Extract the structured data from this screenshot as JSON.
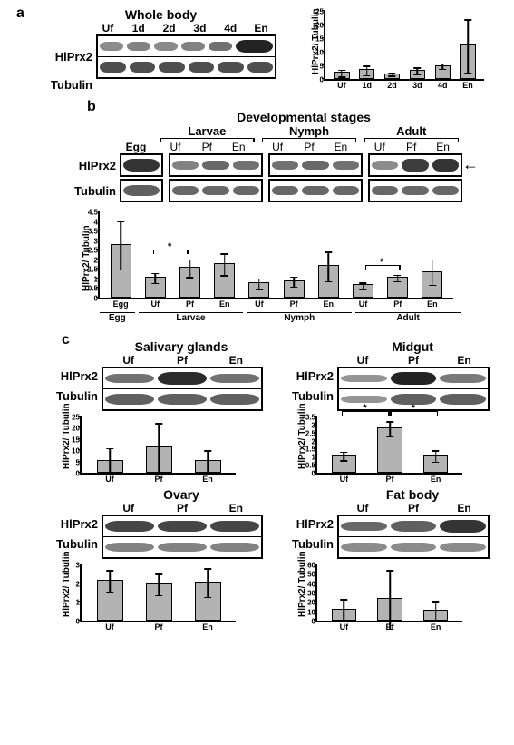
{
  "panelA": {
    "label": "a",
    "title": "Whole body",
    "lanes": [
      "Uf",
      "1d",
      "2d",
      "3d",
      "4d",
      "En"
    ],
    "rows": [
      "HlPrx2",
      "Tubulin"
    ],
    "bands": {
      "HlPrx2": [
        0.35,
        0.4,
        0.35,
        0.4,
        0.5,
        0.95
      ],
      "Tubulin": [
        0.7,
        0.7,
        0.7,
        0.7,
        0.7,
        0.7
      ]
    },
    "chart": {
      "ylabel": "HlPrx2/ Tubulin",
      "ylim": 25,
      "yticks": [
        0,
        5,
        10,
        15,
        20,
        25
      ],
      "bars": [
        {
          "x": "Uf",
          "v": 2,
          "e": 1.5
        },
        {
          "x": "1d",
          "v": 3,
          "e": 2
        },
        {
          "x": "2d",
          "v": 1.5,
          "e": 0.7
        },
        {
          "x": "3d",
          "v": 2.8,
          "e": 1.5
        },
        {
          "x": "4d",
          "v": 4.5,
          "e": 1.2
        },
        {
          "x": "En",
          "v": 12,
          "e": 10
        }
      ]
    }
  },
  "panelB": {
    "label": "b",
    "title": "Developmental stages",
    "egg": "Egg",
    "stages": [
      "Larvae",
      "Nymph",
      "Adult"
    ],
    "sublanes": [
      "Uf",
      "Pf",
      "En"
    ],
    "rows": [
      "HlPrx2",
      "Tubulin"
    ],
    "bands": {
      "Egg": {
        "HlPrx2": 0.85,
        "Tubulin": 0.6
      },
      "Larvae": {
        "HlPrx2": [
          0.4,
          0.55,
          0.5
        ],
        "Tubulin": [
          0.55,
          0.55,
          0.55
        ]
      },
      "Nymph": {
        "HlPrx2": [
          0.5,
          0.55,
          0.5
        ],
        "Tubulin": [
          0.55,
          0.55,
          0.55
        ]
      },
      "Adult": {
        "HlPrx2": [
          0.35,
          0.8,
          0.85
        ],
        "Tubulin": [
          0.55,
          0.55,
          0.55
        ]
      }
    },
    "chart": {
      "ylabel": "HlPrx2/ Tubulin",
      "ylim": 4.5,
      "yticks": [
        0,
        0.5,
        1,
        1.5,
        2,
        2.5,
        3,
        3.5,
        4,
        4.5
      ],
      "bars": [
        {
          "x": "Egg",
          "v": 2.7,
          "e": 1.3,
          "grp": "Egg"
        },
        {
          "x": "Uf",
          "v": 1.0,
          "e": 0.3,
          "grp": "Larvae"
        },
        {
          "x": "Pf",
          "v": 1.5,
          "e": 0.5,
          "grp": "Larvae"
        },
        {
          "x": "En",
          "v": 1.7,
          "e": 0.6,
          "grp": "Larvae"
        },
        {
          "x": "Uf",
          "v": 0.7,
          "e": 0.3,
          "grp": "Nymph"
        },
        {
          "x": "Pf",
          "v": 0.8,
          "e": 0.3,
          "grp": "Nymph"
        },
        {
          "x": "En",
          "v": 1.6,
          "e": 0.8,
          "grp": "Nymph"
        },
        {
          "x": "Uf",
          "v": 0.6,
          "e": 0.2,
          "grp": "Adult"
        },
        {
          "x": "Pf",
          "v": 1.0,
          "e": 0.2,
          "grp": "Adult"
        },
        {
          "x": "En",
          "v": 1.3,
          "e": 0.7,
          "grp": "Adult"
        }
      ],
      "sig": [
        {
          "from": 1,
          "to": 2,
          "star": "*"
        },
        {
          "from": 7,
          "to": 8,
          "star": "*"
        }
      ]
    }
  },
  "panelC": {
    "label": "c",
    "tissues": {
      "sg": {
        "title": "Salivary glands",
        "lanes": [
          "Uf",
          "Pf",
          "En"
        ],
        "rows": [
          "HlPrx2",
          "Tubulin"
        ],
        "bands": {
          "HlPrx2": [
            0.5,
            0.9,
            0.5
          ],
          "Tubulin": [
            0.6,
            0.6,
            0.6
          ]
        },
        "chart": {
          "ylabel": "HlPrx2/ Tubulin",
          "ylim": 25,
          "yticks": [
            0,
            5,
            10,
            15,
            20,
            25
          ],
          "bars": [
            {
              "x": "Uf",
              "v": 5,
              "e": 6
            },
            {
              "x": "Pf",
              "v": 11,
              "e": 11
            },
            {
              "x": "En",
              "v": 5,
              "e": 5
            }
          ]
        }
      },
      "mg": {
        "title": "Midgut",
        "lanes": [
          "Uf",
          "Pf",
          "En"
        ],
        "rows": [
          "HlPrx2",
          "Tubulin"
        ],
        "bands": {
          "HlPrx2": [
            0.3,
            0.95,
            0.45
          ],
          "Tubulin": [
            0.3,
            0.6,
            0.6
          ]
        },
        "chart": {
          "ylabel": "HlPrx2/ Tubulin",
          "ylim": 3.5,
          "yticks": [
            0,
            0.5,
            1,
            1.5,
            2,
            2.5,
            3,
            3.5
          ],
          "bars": [
            {
              "x": "Uf",
              "v": 1.0,
              "e": 0.3
            },
            {
              "x": "Pf",
              "v": 2.7,
              "e": 0.5
            },
            {
              "x": "En",
              "v": 1.0,
              "e": 0.4
            }
          ],
          "sig": [
            {
              "from": 0,
              "to": 1,
              "star": "*"
            },
            {
              "from": 1,
              "to": 2,
              "star": "*"
            }
          ]
        }
      },
      "ov": {
        "title": "Ovary",
        "lanes": [
          "Uf",
          "Pf",
          "En"
        ],
        "rows": [
          "HlPrx2",
          "Tubulin"
        ],
        "bands": {
          "HlPrx2": [
            0.75,
            0.75,
            0.75
          ],
          "Tubulin": [
            0.4,
            0.4,
            0.4
          ]
        },
        "chart": {
          "ylabel": "HlPrx2/ Tubulin",
          "ylim": 3,
          "yticks": [
            0,
            1,
            2,
            3
          ],
          "bars": [
            {
              "x": "Uf",
              "v": 2.1,
              "e": 0.6
            },
            {
              "x": "Pf",
              "v": 1.9,
              "e": 0.6
            },
            {
              "x": "En",
              "v": 2.0,
              "e": 0.8
            }
          ]
        }
      },
      "fb": {
        "title": "Fat body",
        "lanes": [
          "Uf",
          "Pf",
          "En"
        ],
        "rows": [
          "HlPrx2",
          "Tubulin"
        ],
        "bands": {
          "HlPrx2": [
            0.55,
            0.6,
            0.85
          ],
          "Tubulin": [
            0.35,
            0.35,
            0.35
          ]
        },
        "chart": {
          "ylabel": "HlPrx2/ Tubulin",
          "ylim": 60,
          "yticks": [
            0,
            10,
            20,
            30,
            40,
            50,
            60
          ],
          "bars": [
            {
              "x": "Uf",
              "v": 11,
              "e": 12
            },
            {
              "x": "Pf",
              "v": 22,
              "e": 32
            },
            {
              "x": "En",
              "v": 10,
              "e": 11
            }
          ]
        }
      }
    }
  },
  "colors": {
    "bar": "#b3b3b3",
    "band_dark": "#1a1a1a",
    "band_light": "#808080"
  }
}
